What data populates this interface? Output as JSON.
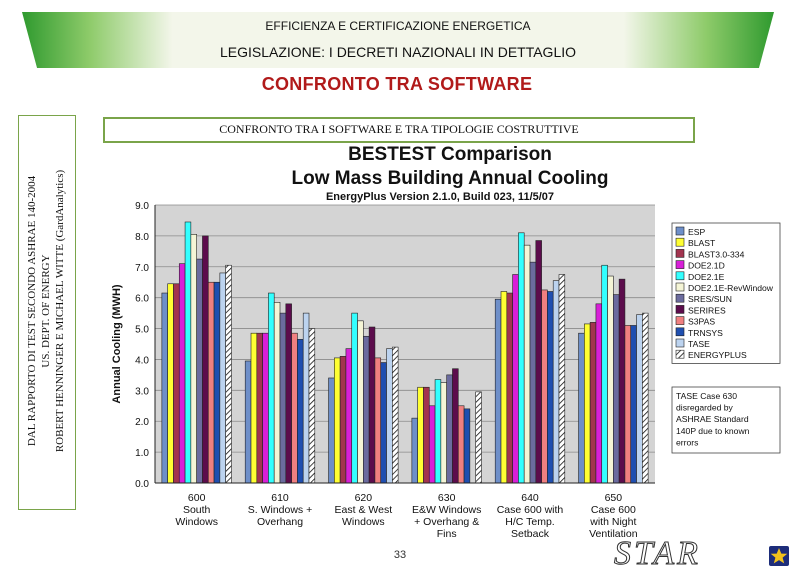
{
  "header": {
    "title": "EFFICIENZA E CERTIFICAZIONE ENERGETICA",
    "subtitle": "LEGISLAZIONE: I DECRETI NAZIONALI  IN DETTAGLIO"
  },
  "page_title": "CONFRONTO TRA SOFTWARE",
  "side_note": {
    "line1": "DAL RAPPORTO DI TEST SECONDO ASHRAE 140-2004",
    "line2": "US. DEPT. OF ENERGY",
    "line3": "ROBERT HENNINGER E MICHAEL WITTE (GardAnalytics)"
  },
  "section_subtitle": "CONFRONTO TRA I SOFTWARE E TRA TIPOLOGIE COSTRUTTIVE",
  "page_number": "33",
  "logo": {
    "text": "STAR"
  },
  "colors": {
    "banner_green": "#2f9a2f",
    "title_red": "#b11a1a",
    "frame_green": "#7aa44a"
  },
  "chart_data": {
    "type": "bar",
    "title": "BESTEST Comparison",
    "subtitle": "Low Mass Building Annual Cooling",
    "caption": "EnergyPlus Version 2.1.0, Build 023, 11/5/07",
    "ylabel": "Annual Cooling (MWH)",
    "xlabel": "",
    "ylim": [
      0,
      9
    ],
    "yticks": [
      "0.0",
      "1.0",
      "2.0",
      "3.0",
      "4.0",
      "5.0",
      "6.0",
      "7.0",
      "8.0",
      "9.0"
    ],
    "grid": true,
    "legend_position": "right",
    "categories": [
      [
        "600",
        "South",
        "Windows"
      ],
      [
        "610",
        "S. Windows +",
        "Overhang"
      ],
      [
        "620",
        "East & West",
        "Windows"
      ],
      [
        "630",
        "E&W Windows",
        "+ Overhang &",
        "Fins"
      ],
      [
        "640",
        "Case 600 with",
        "H/C Temp.",
        "Setback"
      ],
      [
        "650",
        "Case 600",
        "with Night",
        "Ventilation"
      ]
    ],
    "series": [
      {
        "name": "ESP",
        "color": "#6e8fc9",
        "values": [
          6.15,
          3.95,
          3.4,
          2.1,
          5.95,
          4.85
        ]
      },
      {
        "name": "BLAST",
        "color": "#ffff33",
        "values": [
          6.45,
          4.85,
          4.05,
          3.1,
          6.2,
          5.15
        ]
      },
      {
        "name": "BLAST3.0-334",
        "color": "#a2344f",
        "values": [
          6.45,
          4.85,
          4.1,
          3.1,
          6.15,
          5.2
        ]
      },
      {
        "name": "DOE2.1D",
        "color": "#d81fd8",
        "values": [
          7.1,
          4.85,
          4.35,
          2.5,
          6.75,
          5.8
        ]
      },
      {
        "name": "DOE2.1E",
        "color": "#33ffff",
        "values": [
          8.45,
          6.15,
          5.5,
          3.35,
          8.1,
          7.05
        ]
      },
      {
        "name": "DOE2.1E-RevWindow",
        "color": "#f5f5d6",
        "values": [
          8.05,
          5.85,
          5.25,
          3.25,
          7.7,
          6.7
        ]
      },
      {
        "name": "SRES/SUN",
        "color": "#6b6b9e",
        "values": [
          7.25,
          5.5,
          4.75,
          3.5,
          7.15,
          6.1
        ]
      },
      {
        "name": "SERIRES",
        "color": "#5c0c4c",
        "values": [
          8.0,
          5.8,
          5.05,
          3.7,
          7.85,
          6.6
        ]
      },
      {
        "name": "S3PAS",
        "color": "#f08080",
        "values": [
          6.5,
          4.85,
          4.05,
          2.5,
          6.25,
          5.1
        ]
      },
      {
        "name": "TRNSYS",
        "color": "#1f4fb0",
        "values": [
          6.5,
          4.65,
          3.9,
          2.4,
          6.2,
          5.1
        ]
      },
      {
        "name": "TASE",
        "color": "#bcd3ef",
        "values": [
          6.8,
          5.5,
          4.35,
          0,
          6.55,
          5.45
        ]
      },
      {
        "name": "ENERGYPLUS",
        "color": "#ffffff",
        "hatched": true,
        "values": [
          7.05,
          5.0,
          4.4,
          2.95,
          6.75,
          5.5
        ]
      }
    ],
    "annotation": [
      "TASE Case 630",
      "disregarded by",
      "ASHRAE Standard",
      "140P due to  known",
      "errors"
    ]
  }
}
